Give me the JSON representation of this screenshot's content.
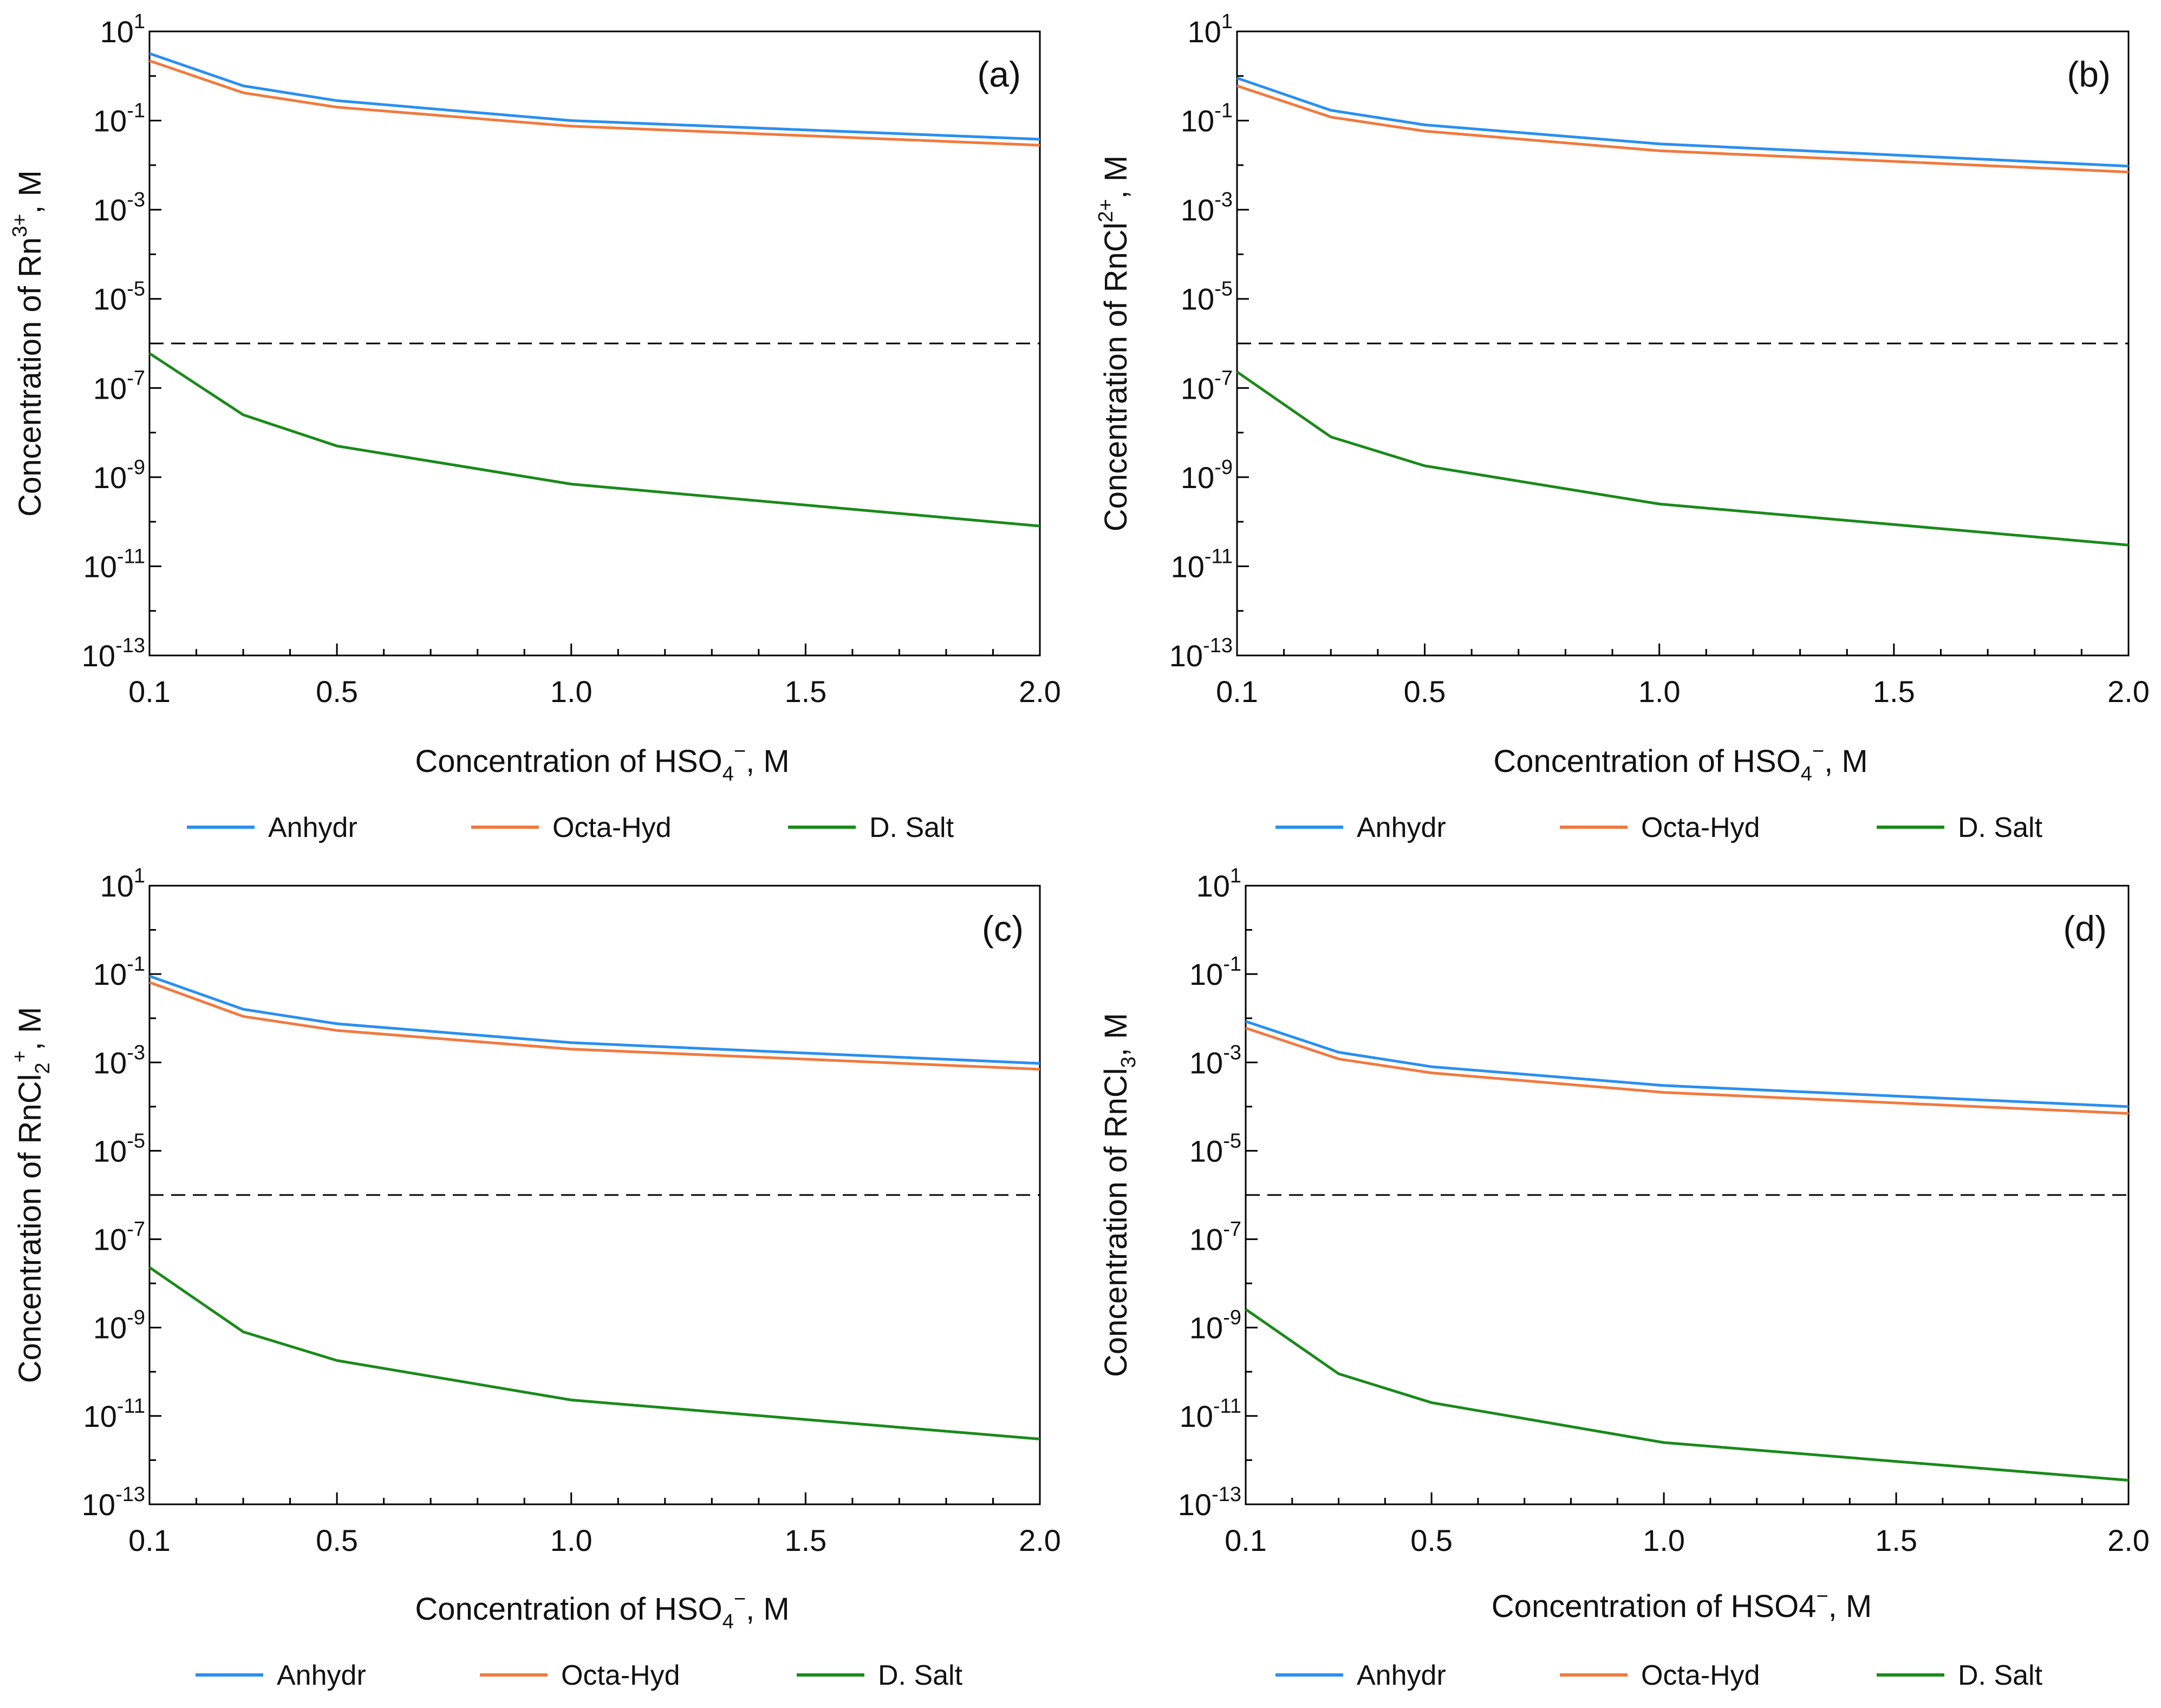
{
  "legend": [
    {
      "name": "Anhydr",
      "color": "#2a8ff0"
    },
    {
      "name": "Octa-Hyd",
      "color": "#f07a40"
    },
    {
      "name": "D. Salt",
      "color": "#1a8a1a"
    }
  ],
  "reference_line": {
    "value": 1e-06,
    "style": "dashed",
    "color": "#000000"
  },
  "chart_data": [
    {
      "type": "line",
      "panel_label": "(a)",
      "xlabel": {
        "main": "Concentration of HSO",
        "sub": "4",
        "sup": "−",
        "suffix": ", M"
      },
      "ylabel": {
        "main": "Concentration of Rn",
        "sub": "",
        "sup": "3+",
        "suffix": ", M"
      },
      "x_ticks": [
        "0.1",
        "0.5",
        "1.0",
        "1.5",
        "2.0"
      ],
      "x_tick_values": [
        0.1,
        0.5,
        1.0,
        1.5,
        2.0
      ],
      "y_tick_exponents": [
        "1",
        "-1",
        "-3",
        "-5",
        "-7",
        "-9",
        "-11",
        "-13"
      ],
      "y_tick_base": "10",
      "ylim_log10": [
        -13,
        1
      ],
      "xlim": [
        0.1,
        2.0
      ],
      "x": [
        0.1,
        0.3,
        0.5,
        1.0,
        2.0
      ],
      "series": [
        {
          "name": "Anhydr",
          "values": [
            3.2,
            0.6,
            0.28,
            0.1,
            0.038
          ]
        },
        {
          "name": "Octa-Hyd",
          "values": [
            2.2,
            0.42,
            0.2,
            0.075,
            0.028
          ]
        },
        {
          "name": "D. Salt",
          "values": [
            6e-07,
            2.5e-08,
            5e-09,
            7e-10,
            8e-11
          ]
        }
      ]
    },
    {
      "type": "line",
      "panel_label": "(b)",
      "xlabel": {
        "main": "Concentration of HSO",
        "sub": "4",
        "sup": "−",
        "suffix": ", M"
      },
      "ylabel": {
        "main": "Concentration of RnCl",
        "sub": "",
        "sup": "2+",
        "suffix": ", M"
      },
      "x_ticks": [
        "0.1",
        "0.5",
        "1.0",
        "1.5",
        "2.0"
      ],
      "x_tick_values": [
        0.1,
        0.5,
        1.0,
        1.5,
        2.0
      ],
      "y_tick_exponents": [
        "1",
        "-1",
        "-3",
        "-5",
        "-7",
        "-9",
        "-11",
        "-13"
      ],
      "y_tick_base": "10",
      "ylim_log10": [
        -13,
        1
      ],
      "xlim": [
        0.1,
        2.0
      ],
      "x": [
        0.1,
        0.3,
        0.5,
        1.0,
        2.0
      ],
      "series": [
        {
          "name": "Anhydr",
          "values": [
            0.9,
            0.17,
            0.08,
            0.03,
            0.0095
          ]
        },
        {
          "name": "Octa-Hyd",
          "values": [
            0.6,
            0.12,
            0.058,
            0.021,
            0.007
          ]
        },
        {
          "name": "D. Salt",
          "values": [
            2.3e-07,
            8e-09,
            1.8e-09,
            2.5e-10,
            3e-11
          ]
        }
      ]
    },
    {
      "type": "line",
      "panel_label": "(c)",
      "xlabel": {
        "main": "Concentration of HSO",
        "sub": "4",
        "sup": "−",
        "suffix": ", M"
      },
      "ylabel": {
        "main": "Concentration of RnCl",
        "sub": "2",
        "sup": "+",
        "suffix": ", M"
      },
      "x_ticks": [
        "0.1",
        "0.5",
        "1.0",
        "1.5",
        "2.0"
      ],
      "x_tick_values": [
        0.1,
        0.5,
        1.0,
        1.5,
        2.0
      ],
      "y_tick_exponents": [
        "1",
        "-1",
        "-3",
        "-5",
        "-7",
        "-9",
        "-11",
        "-13"
      ],
      "y_tick_base": "10",
      "ylim_log10": [
        -13,
        1
      ],
      "xlim": [
        0.1,
        2.0
      ],
      "x": [
        0.1,
        0.3,
        0.5,
        1.0,
        2.0
      ],
      "series": [
        {
          "name": "Anhydr",
          "values": [
            0.09,
            0.016,
            0.0075,
            0.0028,
            0.00095
          ]
        },
        {
          "name": "Octa-Hyd",
          "values": [
            0.065,
            0.011,
            0.0053,
            0.002,
            0.0007
          ]
        },
        {
          "name": "D. Salt",
          "values": [
            2.3e-08,
            8e-10,
            1.8e-10,
            2.3e-11,
            3e-12
          ]
        }
      ]
    },
    {
      "type": "line",
      "panel_label": "(d)",
      "xlabel": {
        "main": "Concentration of HSO4",
        "sub": "",
        "sup": "−",
        "suffix": ", M"
      },
      "ylabel": {
        "main": "Concentration of RnCl",
        "sub": "3",
        "sup": "",
        "suffix": ", M"
      },
      "x_ticks": [
        "0.1",
        "0.5",
        "1.0",
        "1.5",
        "2.0"
      ],
      "x_tick_values": [
        0.1,
        0.5,
        1.0,
        1.5,
        2.0
      ],
      "y_tick_exponents": [
        "1",
        "-1",
        "-3",
        "-5",
        "-7",
        "-9",
        "-11",
        "-13"
      ],
      "y_tick_base": "10",
      "ylim_log10": [
        -13,
        1
      ],
      "xlim": [
        0.1,
        2.0
      ],
      "x": [
        0.1,
        0.3,
        0.5,
        1.0,
        2.0
      ],
      "series": [
        {
          "name": "Anhydr",
          "values": [
            0.0085,
            0.0017,
            0.0008,
            0.0003,
            0.0001
          ]
        },
        {
          "name": "Octa-Hyd",
          "values": [
            0.006,
            0.0012,
            0.00058,
            0.00021,
            7e-05
          ]
        },
        {
          "name": "D. Salt",
          "values": [
            2.6e-09,
            9e-11,
            2e-11,
            2.5e-12,
            3.5e-13
          ]
        }
      ]
    }
  ]
}
